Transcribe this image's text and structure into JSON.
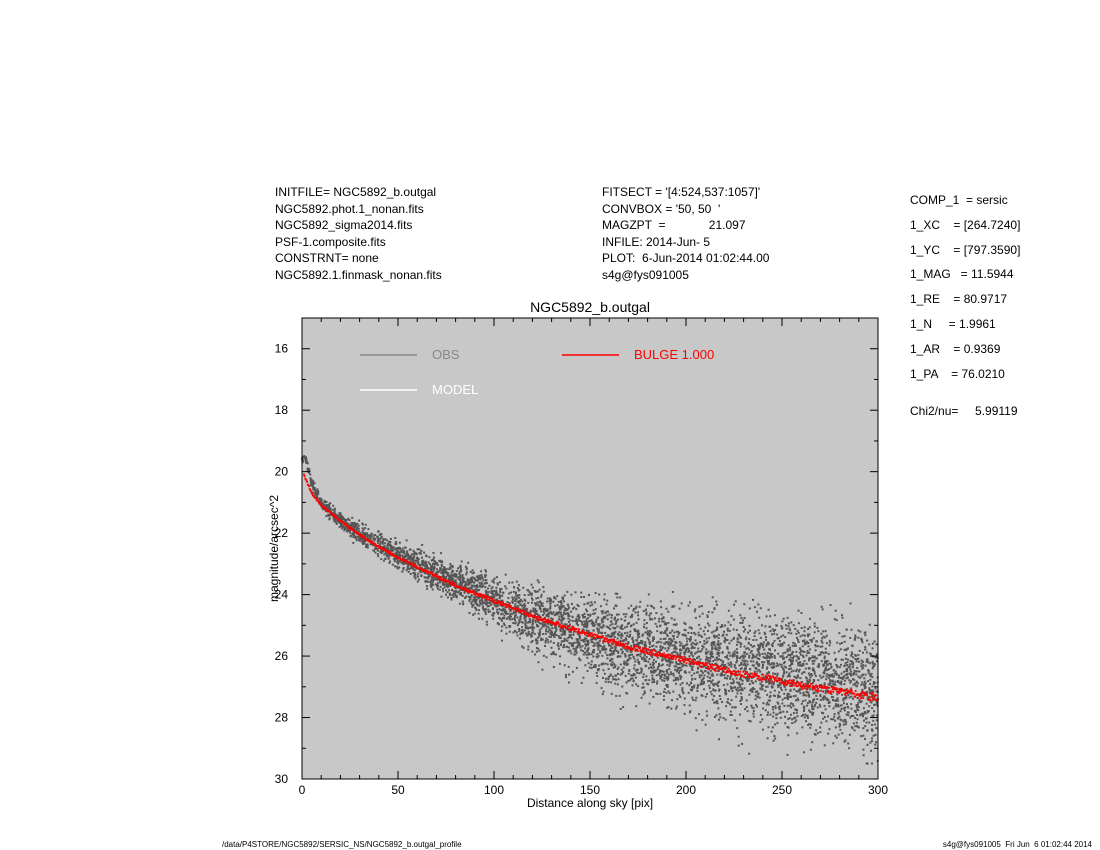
{
  "header": {
    "left": [
      "INITFILE= NGC5892_b.outgal",
      "NGC5892.phot.1_nonan.fits",
      "NGC5892_sigma2014.fits",
      "PSF-1.composite.fits",
      "CONSTRNT= none",
      "NGC5892.1.finmask_nonan.fits"
    ],
    "middle": [
      "FITSECT = '[4:524,537:1057]'",
      "CONVBOX = '50, 50  '",
      "MAGZPT  =             21.097",
      "INFILE: 2014-Jun- 5",
      "PLOT:  6-Jun-2014 01:02:44.00",
      "s4g@fys091005"
    ],
    "right": [
      "COMP_1  = sersic",
      "1_XC    = [264.7240]",
      "1_YC    = [797.3590]",
      "1_MAG   = 11.5944",
      "1_RE    = 80.9717",
      "1_N     = 1.9961",
      "1_AR    = 0.9369",
      "1_PA    = 76.0210"
    ],
    "chi2": "Chi2/nu=     5.99119"
  },
  "footer": {
    "left": "/data/P4STORE/NGC5892/SERSIC_NS/NGC5892_b.outgal_profile",
    "right": "s4g@fys091005  Fri Jun  6 01:02:44 2014"
  },
  "chart_data": {
    "type": "scatter",
    "title": "NGC5892_b.outgal",
    "xlabel": "Distance along sky [pix]",
    "ylabel": "magnitude/arcsec^2",
    "xlim": [
      0,
      300
    ],
    "ylim": [
      30,
      15
    ],
    "y_inverted": true,
    "x_ticks": [
      "0",
      "50",
      "100",
      "150",
      "200",
      "250",
      "300"
    ],
    "y_ticks": [
      "16",
      "18",
      "20",
      "22",
      "24",
      "26",
      "28",
      "30"
    ],
    "background_color": "#c8c8c8",
    "legend": [
      {
        "label": "OBS",
        "color": "#888888"
      },
      {
        "label": "MODEL",
        "color": "#ffffff"
      },
      {
        "label": "BULGE  1.000",
        "color": "#ff0000"
      }
    ],
    "series": [
      {
        "name": "OBS",
        "color": "#555555",
        "kind": "scatter-band",
        "x": [
          2,
          5,
          10,
          20,
          30,
          40,
          50,
          60,
          70,
          80,
          90,
          100,
          110,
          120,
          130,
          140,
          150,
          160,
          170,
          180,
          190,
          200,
          210,
          220,
          230,
          240,
          250,
          260,
          270,
          280,
          290,
          300
        ],
        "y_center": [
          19.6,
          20.4,
          21.0,
          21.6,
          22.0,
          22.4,
          22.7,
          23.0,
          23.3,
          23.6,
          23.9,
          24.2,
          24.5,
          24.8,
          25.0,
          25.2,
          25.4,
          25.6,
          25.75,
          25.9,
          26.0,
          26.1,
          26.2,
          26.3,
          26.4,
          26.5,
          26.6,
          26.7,
          26.8,
          26.9,
          27.0,
          27.1
        ],
        "spread": [
          0.1,
          0.15,
          0.2,
          0.25,
          0.3,
          0.35,
          0.4,
          0.45,
          0.5,
          0.55,
          0.6,
          0.7,
          0.8,
          0.9,
          1.0,
          1.1,
          1.2,
          1.3,
          1.35,
          1.4,
          1.45,
          1.5,
          1.55,
          1.6,
          1.65,
          1.7,
          1.75,
          1.8,
          1.85,
          1.9,
          1.95,
          2.0
        ]
      },
      {
        "name": "BULGE  1.000",
        "color": "#ff0000",
        "kind": "model",
        "x": [
          1,
          5,
          10,
          20,
          30,
          40,
          50,
          60,
          70,
          80,
          90,
          100,
          110,
          120,
          130,
          140,
          150,
          160,
          170,
          180,
          190,
          200,
          210,
          220,
          230,
          240,
          250,
          260,
          270,
          280,
          290,
          300
        ],
        "y": [
          20.1,
          20.7,
          21.1,
          21.6,
          22.05,
          22.45,
          22.8,
          23.1,
          23.4,
          23.7,
          23.95,
          24.2,
          24.45,
          24.7,
          24.9,
          25.1,
          25.3,
          25.5,
          25.7,
          25.85,
          26.0,
          26.15,
          26.3,
          26.45,
          26.6,
          26.7,
          26.8,
          26.95,
          27.05,
          27.15,
          27.25,
          27.35
        ]
      }
    ]
  }
}
